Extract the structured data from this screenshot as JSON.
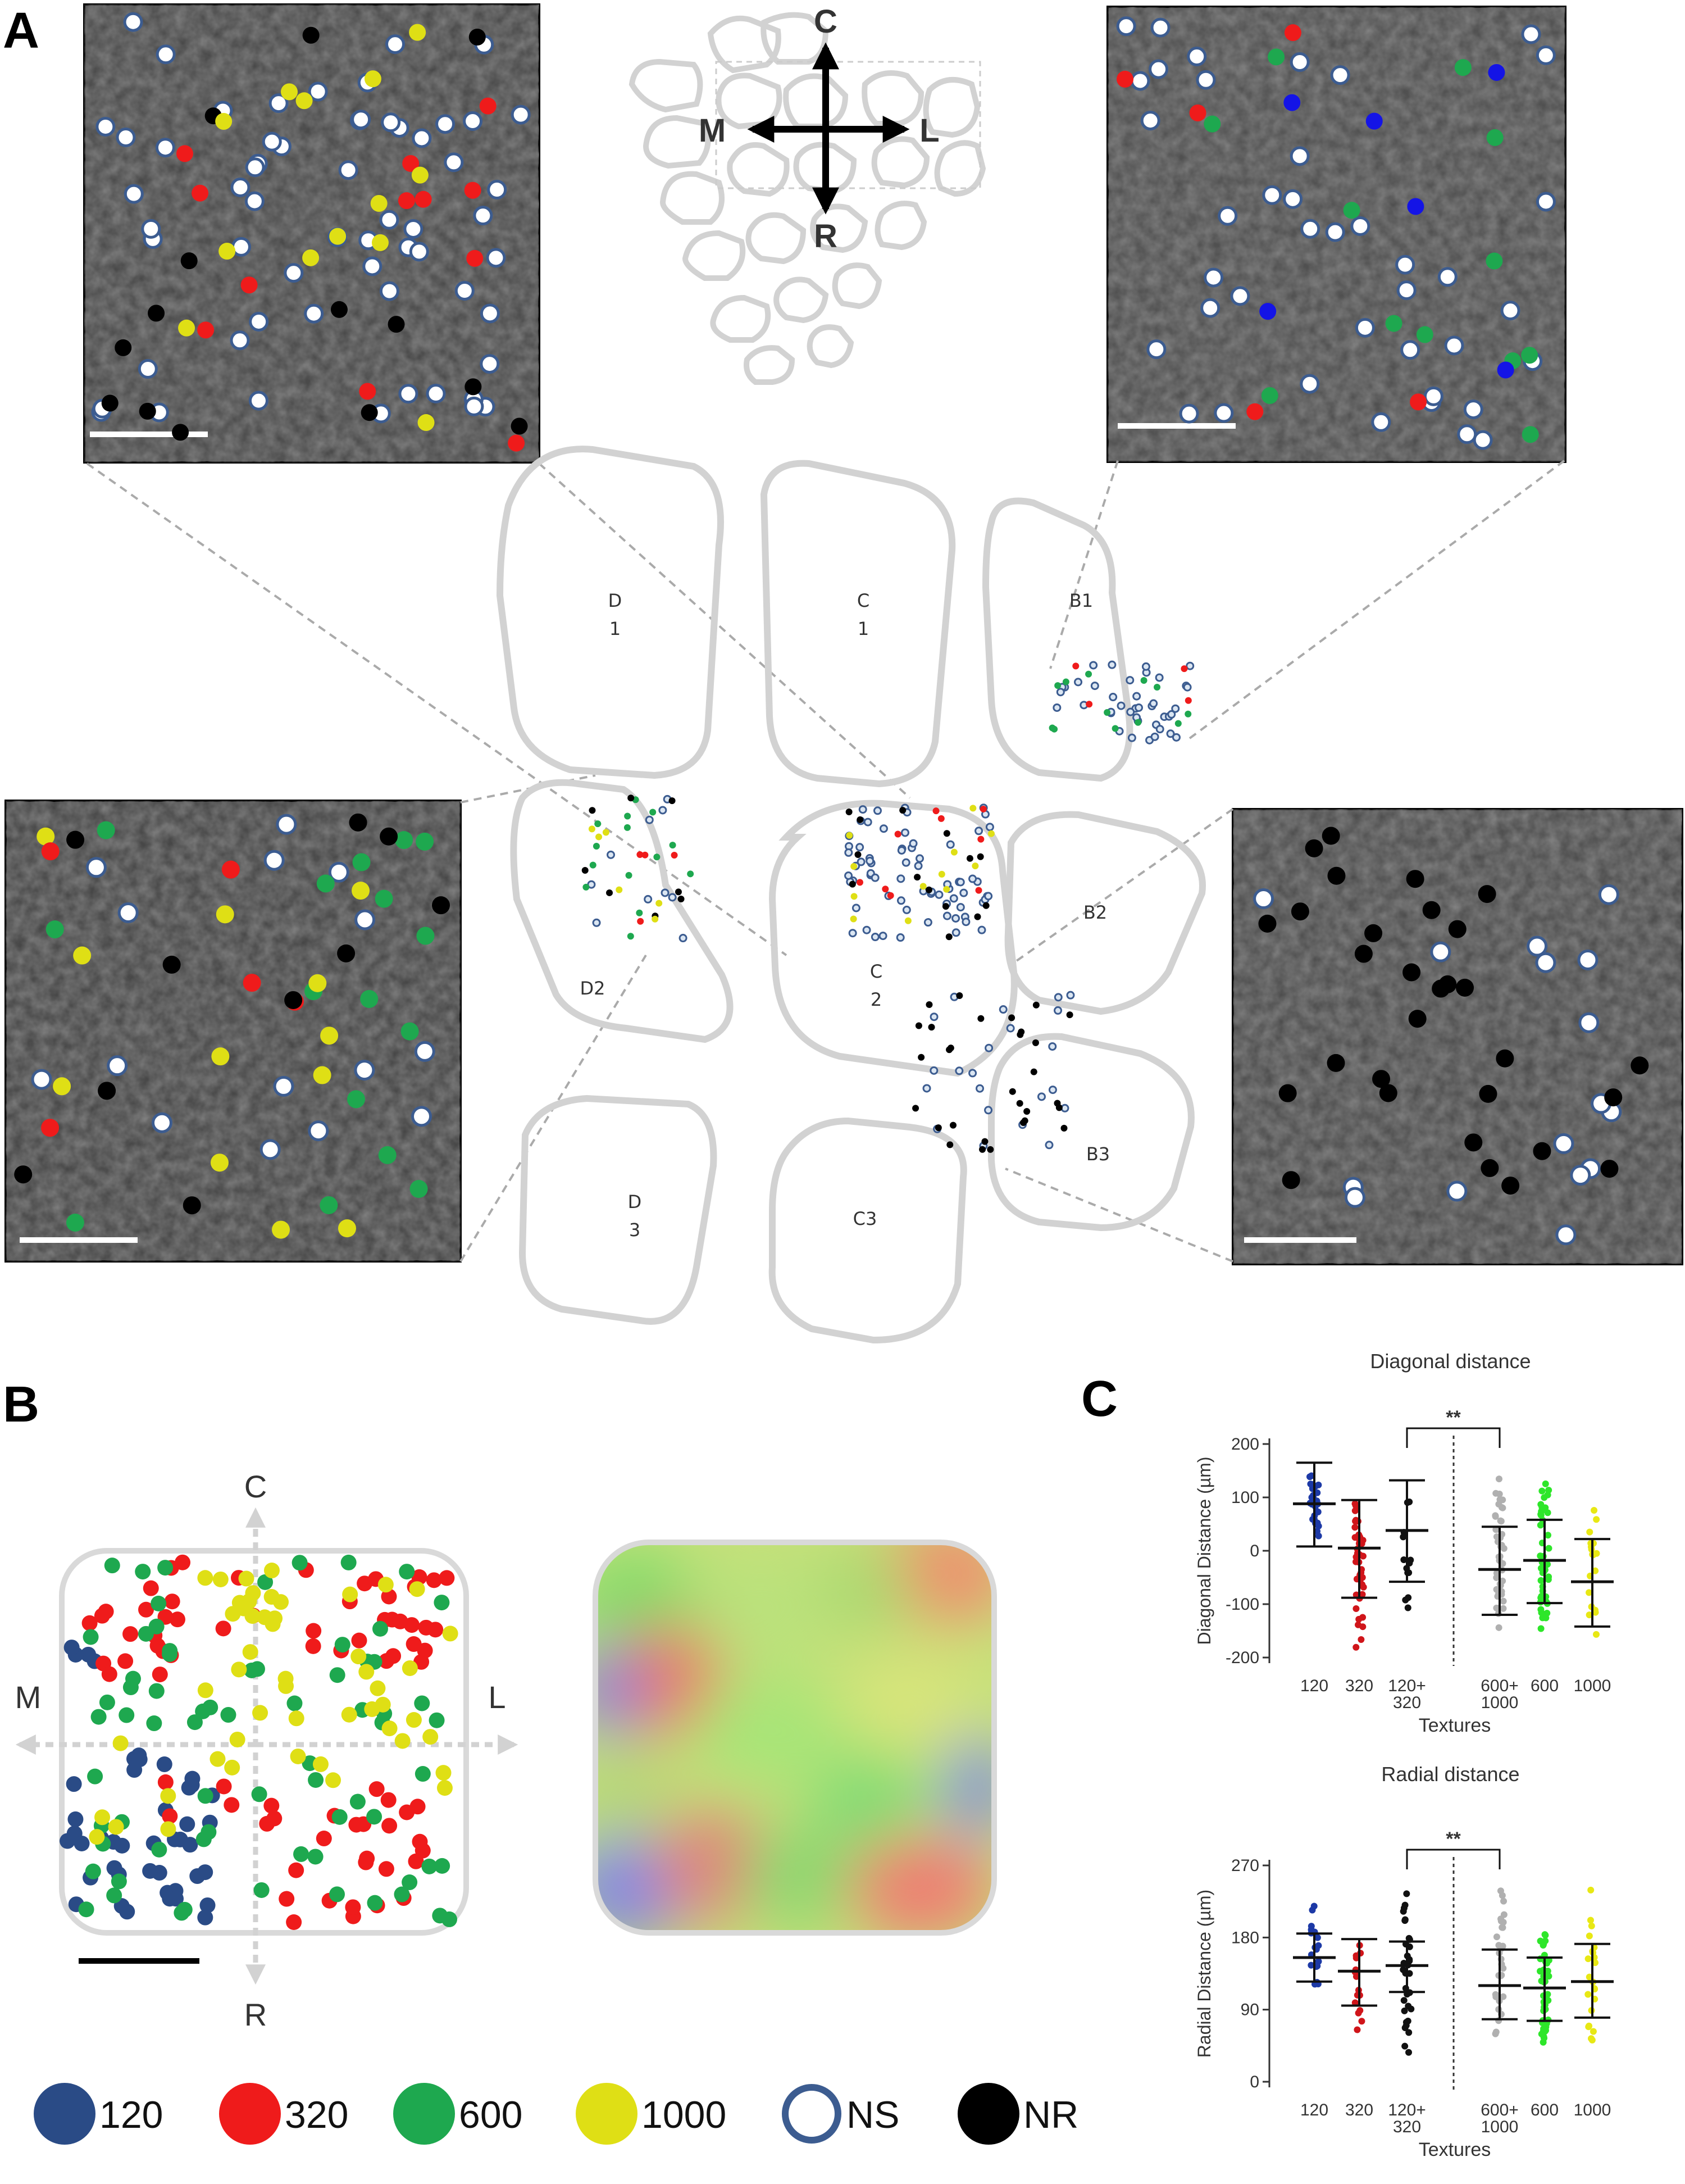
{
  "panels": {
    "a": "A",
    "b": "B",
    "c": "C"
  },
  "colors": {
    "c120": "#2a4b86",
    "c320": "#ef1b1b",
    "c600": "#1ea84f",
    "c1000": "#dfdf15",
    "ns": "#3c5c90",
    "nr": "#000000",
    "blueMicro": "#1414e6",
    "ns_fill": "#ffffff"
  },
  "panelA": {
    "orientation": {
      "caudal": "C",
      "rostral": "R",
      "medial": "M",
      "lateral": "L"
    },
    "barrels": [
      {
        "id": "D1",
        "lines": [
          "D",
          "1"
        ]
      },
      {
        "id": "C1",
        "lines": [
          "C",
          "1"
        ]
      },
      {
        "id": "B1",
        "lines": [
          "B1"
        ]
      },
      {
        "id": "D2",
        "lines": [
          "D2"
        ]
      },
      {
        "id": "C2",
        "lines": [
          "C",
          "2"
        ]
      },
      {
        "id": "B2",
        "lines": [
          "B2"
        ]
      },
      {
        "id": "D3",
        "lines": [
          "D",
          "3"
        ]
      },
      {
        "id": "C3",
        "lines": [
          "C3"
        ]
      },
      {
        "id": "B3",
        "lines": [
          "B3"
        ]
      }
    ]
  },
  "panelB": {
    "orientation": {
      "caudal": "C",
      "rostral": "R",
      "medial": "M",
      "lateral": "L"
    },
    "legend": [
      {
        "label": "120",
        "color": "#2a4b86",
        "type": "filled"
      },
      {
        "label": "320",
        "color": "#ef1b1b",
        "type": "filled"
      },
      {
        "label": "600",
        "color": "#1ea84f",
        "type": "filled"
      },
      {
        "label": "1000",
        "color": "#dfdf15",
        "type": "filled"
      },
      {
        "label": "NS",
        "color": "#3c5c90",
        "type": "ring"
      },
      {
        "label": "NR",
        "color": "#000000",
        "type": "filled"
      }
    ]
  },
  "chart_data": [
    {
      "type": "scatter",
      "title": "Diagonal distance",
      "xlabel": "Textures",
      "ylabel": "Diagonal Distance (µm)",
      "ylim": [
        -200,
        200
      ],
      "yticks": [
        200,
        100,
        0,
        -100,
        -200
      ],
      "categories": [
        "120",
        "320",
        "120+\n320",
        "600+\n1000",
        "600",
        "1000"
      ],
      "category_lines": [
        [
          "120"
        ],
        [
          "320"
        ],
        [
          "120+",
          "320"
        ],
        [
          "600+",
          "1000"
        ],
        [
          "600"
        ],
        [
          "1000"
        ]
      ],
      "series_colors": [
        "#1c39a6",
        "#d0151a",
        "#111111",
        "#b0b0b0",
        "#2ee62a",
        "#e8e814"
      ],
      "mean": [
        88,
        5,
        38,
        -35,
        -18,
        -58
      ],
      "sd_upper": [
        165,
        95,
        132,
        45,
        58,
        22
      ],
      "sd_lower": [
        8,
        -88,
        -58,
        -120,
        -98,
        -142
      ],
      "range_max": [
        165,
        100,
        130,
        150,
        150,
        120
      ],
      "range_min": [
        10,
        -190,
        -135,
        -180,
        -160,
        -180
      ],
      "significance": {
        "label": "**",
        "from": "120+\n320",
        "to": "600+\n1000"
      }
    },
    {
      "type": "scatter",
      "title": "Radial distance",
      "xlabel": "Textures",
      "ylabel": "Radial Distance (µm)",
      "ylim": [
        0,
        270
      ],
      "yticks": [
        270,
        180,
        90,
        0
      ],
      "categories": [
        "120",
        "320",
        "120+\n320",
        "600+\n1000",
        "600",
        "1000"
      ],
      "category_lines": [
        [
          "120"
        ],
        [
          "320"
        ],
        [
          "120+",
          "320"
        ],
        [
          "600+",
          "1000"
        ],
        [
          "600"
        ],
        [
          "1000"
        ]
      ],
      "series_colors": [
        "#1c39a6",
        "#d0151a",
        "#111111",
        "#b0b0b0",
        "#2ee62a",
        "#e8e814"
      ],
      "mean": [
        155,
        138,
        145,
        120,
        117,
        125
      ],
      "sd_upper": [
        185,
        178,
        175,
        165,
        155,
        172
      ],
      "sd_lower": [
        125,
        95,
        112,
        78,
        76,
        80
      ],
      "range_max": [
        245,
        195,
        250,
        255,
        200,
        255
      ],
      "range_min": [
        95,
        20,
        20,
        30,
        30,
        30
      ],
      "significance": {
        "label": "**",
        "from": "120+\n320",
        "to": "600+\n1000"
      }
    }
  ]
}
